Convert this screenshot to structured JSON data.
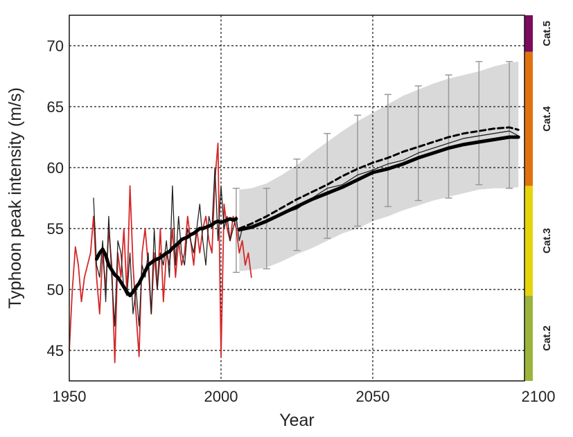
{
  "chart_data": {
    "type": "line",
    "title": "",
    "xlabel": "Year",
    "ylabel": "Typhoon peak intensity (m/s)",
    "xlim": [
      1950,
      2100
    ],
    "ylim": [
      42.5,
      72.5
    ],
    "xticks": [
      1950,
      2000,
      2050,
      2100
    ],
    "yticks": [
      45,
      50,
      55,
      60,
      65,
      70
    ],
    "xtick_labels": [
      "1950",
      "2000",
      "2050",
      "2100"
    ],
    "ytick_labels": [
      "45",
      "50",
      "55",
      "60",
      "65",
      "70"
    ],
    "grid": true,
    "colors": {
      "observed_red": "#d62728",
      "observed_black": "#222222",
      "projection": "#000000",
      "spread_band": "#d9d9d9",
      "error_bar": "#999999"
    },
    "categories": [
      {
        "label": "Cat.2",
        "range": [
          42.5,
          49.5
        ],
        "color": "#9bb43c"
      },
      {
        "label": "Cat.3",
        "range": [
          49.5,
          58.5
        ],
        "color": "#e6d40a"
      },
      {
        "label": "Cat.4",
        "range": [
          58.5,
          69.5
        ],
        "color": "#e07310"
      },
      {
        "label": "Cat.5",
        "range": [
          69.5,
          72.5
        ],
        "color": "#7a0c5e"
      }
    ],
    "series": [
      {
        "name": "Observed (red)",
        "style": "thin-red",
        "x": [
          1950,
          1951,
          1952,
          1953,
          1954,
          1955,
          1956,
          1957,
          1958,
          1959,
          1960,
          1961,
          1962,
          1963,
          1964,
          1965,
          1966,
          1967,
          1968,
          1969,
          1970,
          1971,
          1972,
          1973,
          1974,
          1975,
          1976,
          1977,
          1978,
          1979,
          1980,
          1981,
          1982,
          1983,
          1984,
          1985,
          1986,
          1987,
          1988,
          1989,
          1990,
          1991,
          1992,
          1993,
          1994,
          1995,
          1996,
          1997,
          1998,
          1999,
          2000,
          2001,
          2002,
          2003,
          2004,
          2005,
          2006,
          2007,
          2008,
          2009,
          2010
        ],
        "values": [
          45,
          50,
          53.5,
          52,
          49,
          51,
          52,
          53,
          56,
          51,
          48,
          53,
          50,
          55,
          52,
          44,
          53,
          51,
          55,
          49.5,
          58.5,
          52,
          48,
          44.5,
          53,
          55,
          52,
          48,
          53,
          50,
          55,
          49,
          53,
          52,
          55,
          51,
          54,
          52,
          53,
          56,
          54,
          52,
          55,
          53,
          55,
          56,
          54,
          53,
          59,
          62,
          44.5,
          57,
          55,
          54,
          56,
          55,
          53,
          54,
          52,
          53,
          51
        ]
      },
      {
        "name": "Observed (black)",
        "style": "thin-black",
        "x": [
          1958,
          1959,
          1960,
          1961,
          1962,
          1963,
          1964,
          1965,
          1966,
          1967,
          1968,
          1969,
          1970,
          1971,
          1972,
          1973,
          1974,
          1975,
          1976,
          1977,
          1978,
          1979,
          1980,
          1981,
          1982,
          1983,
          1984,
          1985,
          1986,
          1987,
          1988,
          1989,
          1990,
          1991,
          1992,
          1993,
          1994,
          1995,
          1996,
          1997,
          1998,
          1999,
          2000,
          2001,
          2002,
          2003,
          2004,
          2005,
          2006,
          2007
        ],
        "values": [
          57.5,
          52,
          51,
          54,
          49,
          56,
          51,
          47,
          54,
          53,
          50,
          49.5,
          53,
          48,
          50,
          47,
          52,
          51,
          53,
          48,
          55,
          50,
          53,
          52,
          54,
          51,
          58.5,
          52,
          56,
          53,
          52,
          55,
          54,
          53,
          55,
          57,
          54,
          52,
          56,
          55,
          60,
          54,
          58.5,
          55,
          56,
          54,
          55,
          56,
          54,
          55
        ]
      },
      {
        "name": "Observed smoothed",
        "style": "thick-black",
        "x": [
          1959,
          1960,
          1961,
          1962,
          1963,
          1964,
          1965,
          1966,
          1967,
          1968,
          1969,
          1970,
          1971,
          1972,
          1973,
          1974,
          1975,
          1976,
          1977,
          1978,
          1979,
          1980,
          1981,
          1982,
          1983,
          1984,
          1985,
          1986,
          1987,
          1988,
          1989,
          1990,
          1991,
          1992,
          1993,
          1994,
          1995,
          1996,
          1997,
          1998,
          1999,
          2000,
          2001,
          2002,
          2003,
          2004,
          2005
        ],
        "values": [
          52.5,
          53,
          53.3,
          52.8,
          52,
          51.6,
          51.2,
          51,
          50.6,
          50.2,
          49.8,
          49.5,
          49.8,
          50.2,
          50.5,
          51,
          51.5,
          52,
          52.2,
          52.4,
          52.5,
          52.6,
          52.8,
          53,
          53.1,
          53.4,
          53.6,
          53.8,
          54.1,
          54.2,
          54.3,
          54.5,
          54.6,
          54.8,
          55,
          55,
          55.1,
          55.2,
          55.3,
          55.5,
          55.6,
          55.5,
          55.6,
          55.7,
          55.8,
          55.7,
          55.8
        ]
      },
      {
        "name": "Projection (dashed)",
        "style": "dashed-black",
        "x": [
          2006,
          2010,
          2015,
          2020,
          2025,
          2030,
          2035,
          2040,
          2045,
          2050,
          2055,
          2060,
          2065,
          2070,
          2075,
          2080,
          2085,
          2090,
          2095,
          2098
        ],
        "values": [
          55,
          55.4,
          56,
          56.7,
          57.4,
          58,
          58.6,
          59.3,
          59.9,
          60.4,
          60.8,
          61.3,
          61.7,
          62.1,
          62.5,
          62.8,
          63,
          63.2,
          63.3,
          63.1
        ]
      },
      {
        "name": "Projection (thin)",
        "style": "thin-black",
        "x": [
          2006,
          2010,
          2015,
          2020,
          2025,
          2030,
          2035,
          2040,
          2045,
          2050,
          2055,
          2060,
          2065,
          2070,
          2075,
          2080,
          2085,
          2090,
          2095,
          2098
        ],
        "values": [
          54.8,
          55.2,
          55.5,
          56.2,
          56.6,
          57.5,
          58.3,
          58.6,
          59.4,
          59.8,
          60.3,
          60.6,
          61.2,
          61.6,
          62,
          62.4,
          62.6,
          62.8,
          63,
          62.6
        ]
      },
      {
        "name": "Projection mean",
        "style": "thick-black",
        "x": [
          2006,
          2010,
          2015,
          2020,
          2025,
          2030,
          2035,
          2040,
          2045,
          2050,
          2055,
          2060,
          2065,
          2070,
          2075,
          2080,
          2085,
          2090,
          2095,
          2098
        ],
        "values": [
          54.9,
          55.1,
          55.6,
          56.2,
          56.8,
          57.4,
          57.9,
          58.4,
          59,
          59.6,
          59.9,
          60.3,
          60.8,
          61.2,
          61.6,
          61.9,
          62.1,
          62.3,
          62.5,
          62.5
        ]
      }
    ],
    "spread_band": {
      "x": [
        2006,
        2010,
        2015,
        2020,
        2025,
        2030,
        2035,
        2040,
        2045,
        2050,
        2055,
        2060,
        2065,
        2070,
        2075,
        2080,
        2085,
        2090,
        2095,
        2098
      ],
      "lower": [
        51.5,
        51.6,
        51.8,
        52.3,
        52.9,
        53.4,
        54,
        54.6,
        55,
        55.6,
        56,
        56.5,
        56.9,
        57.3,
        57.6,
        57.9,
        58.2,
        58.3,
        58.3,
        58.4
      ],
      "upper": [
        58.2,
        58.3,
        58.7,
        59.4,
        60.2,
        61.2,
        62.1,
        63,
        63.8,
        64.5,
        65.2,
        65.9,
        66.4,
        66.9,
        67.3,
        67.6,
        67.9,
        68.3,
        68.6,
        68.7
      ]
    },
    "error_bars": {
      "x": [
        2005,
        2015,
        2025,
        2035,
        2045,
        2055,
        2065,
        2075,
        2085,
        2095
      ],
      "lower": [
        51.4,
        51.7,
        53.2,
        54.2,
        55.2,
        56.8,
        57.3,
        57.5,
        58.6,
        58.3
      ],
      "upper": [
        58.3,
        58.3,
        60.7,
        62.8,
        64.3,
        66,
        66.7,
        67.6,
        68.7,
        68.7
      ]
    }
  }
}
